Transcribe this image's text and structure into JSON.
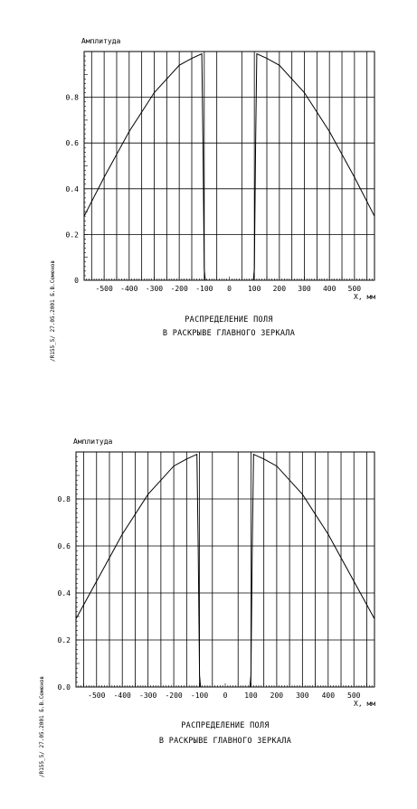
{
  "chart_data": [
    {
      "type": "line",
      "ylabel": "Амплитуда",
      "xlabel": "X, мм",
      "caption_line1": "РАСПРЕДЕЛЕНИЕ ПОЛЯ",
      "caption_line2": "В РАСКРЫВЕ ГЛАВНОГО ЗЕРКАЛА",
      "side_label": "/R155_5/  27.05.2001  Б.В.Семенов",
      "xlim": [
        -580,
        580
      ],
      "ylim": [
        0,
        1.0
      ],
      "x_ticks": [
        -500,
        -400,
        -300,
        -200,
        -100,
        0,
        100,
        200,
        300,
        400,
        500
      ],
      "y_ticks": [
        0,
        0.2,
        0.4,
        0.6,
        0.8
      ],
      "y_tick_labels": [
        "0",
        "0.2",
        "0.4",
        "0.6",
        "0.8"
      ],
      "grid": true,
      "series": [
        {
          "x": [
            -580,
            -500,
            -400,
            -300,
            -200,
            -150,
            -110,
            -105,
            -100,
            -96,
            96,
            100,
            105,
            110,
            150,
            200,
            300,
            400,
            500,
            580
          ],
          "y": [
            0.28,
            0.45,
            0.65,
            0.82,
            0.94,
            0.97,
            0.99,
            0.6,
            0.05,
            0.0,
            0.0,
            0.05,
            0.6,
            0.99,
            0.97,
            0.94,
            0.82,
            0.65,
            0.45,
            0.28
          ]
        }
      ]
    },
    {
      "type": "line",
      "ylabel": "Амплитуда",
      "xlabel": "X, мм",
      "caption_line1": "РАСПРЕДЕЛЕНИЕ ПОЛЯ",
      "caption_line2": "В РАСКРЫВЕ ГЛАВНОГО ЗЕРКАЛА",
      "side_label": "/R155_5/  27.05.2001  Б.В.Семенов",
      "xlim": [
        -580,
        580
      ],
      "ylim": [
        0,
        1.0
      ],
      "x_ticks": [
        -500,
        -400,
        -300,
        -200,
        -100,
        0,
        100,
        200,
        300,
        400,
        500
      ],
      "y_ticks": [
        0,
        0.2,
        0.4,
        0.6,
        0.8
      ],
      "y_tick_labels": [
        "0.0",
        "0.2",
        "0.4",
        "0.6",
        "0.8"
      ],
      "grid": true,
      "series": [
        {
          "x": [
            -580,
            -500,
            -400,
            -300,
            -200,
            -150,
            -110,
            -105,
            -100,
            -96,
            96,
            100,
            105,
            110,
            150,
            200,
            300,
            400,
            500,
            580
          ],
          "y": [
            0.29,
            0.45,
            0.65,
            0.82,
            0.94,
            0.97,
            0.99,
            0.6,
            0.05,
            0.0,
            0.0,
            0.05,
            0.6,
            0.99,
            0.97,
            0.94,
            0.82,
            0.65,
            0.45,
            0.29
          ]
        }
      ]
    }
  ]
}
